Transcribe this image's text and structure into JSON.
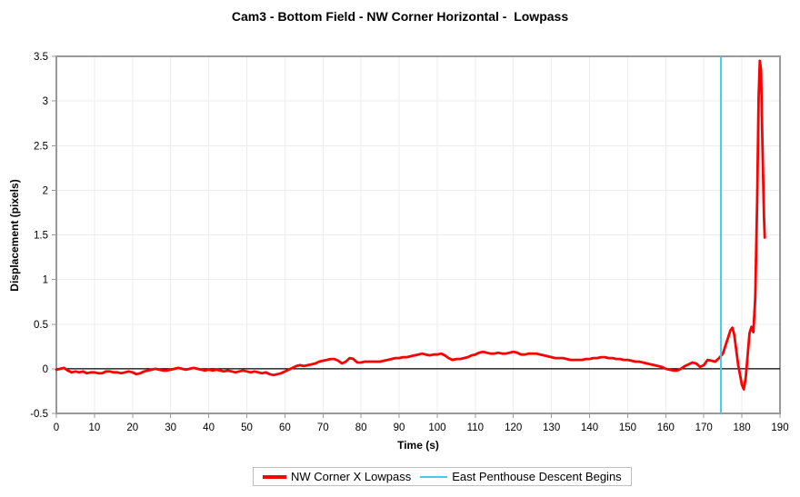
{
  "chart_data": {
    "type": "line",
    "title": "Cam3 - Bottom Field - NW Corner Horizontal -  Lowpass",
    "xlabel": "Time (s)",
    "ylabel": "Displacement (pixels)",
    "xlim": [
      0,
      190
    ],
    "ylim": [
      -0.5,
      3.5
    ],
    "x_ticks": [
      0,
      10,
      20,
      30,
      40,
      50,
      60,
      70,
      80,
      90,
      100,
      110,
      120,
      130,
      140,
      150,
      160,
      170,
      180,
      190
    ],
    "y_ticks": [
      -0.5,
      0,
      0.5,
      1,
      1.5,
      2,
      2.5,
      3,
      3.5
    ],
    "y_tick_labels": [
      "-0.5",
      "0",
      "0.5",
      "1",
      "1.5",
      "2",
      "2.5",
      "3",
      "3.5"
    ],
    "grid": true,
    "legend_position": "bottom-center",
    "colors": {
      "frame": "#999999",
      "grid": "#ededed",
      "zero_line": "#000000",
      "series_red": "#ff0000",
      "event_cyan": "#45c9f1",
      "legend_border": "#bfbfbf"
    },
    "series": [
      {
        "name": "NW Corner X Lowpass",
        "type": "line",
        "color": "#ff0000",
        "width": 2.8,
        "points": [
          [
            0,
            -0.01
          ],
          [
            1,
            0.0
          ],
          [
            2,
            0.01
          ],
          [
            3,
            -0.02
          ],
          [
            4,
            -0.04
          ],
          [
            5,
            -0.03
          ],
          [
            6,
            -0.04
          ],
          [
            7,
            -0.03
          ],
          [
            8,
            -0.05
          ],
          [
            9,
            -0.04
          ],
          [
            10,
            -0.04
          ],
          [
            11,
            -0.05
          ],
          [
            12,
            -0.05
          ],
          [
            13,
            -0.03
          ],
          [
            14,
            -0.03
          ],
          [
            15,
            -0.04
          ],
          [
            16,
            -0.04
          ],
          [
            17,
            -0.05
          ],
          [
            18,
            -0.04
          ],
          [
            19,
            -0.03
          ],
          [
            20,
            -0.04
          ],
          [
            21,
            -0.06
          ],
          [
            22,
            -0.05
          ],
          [
            23,
            -0.03
          ],
          [
            24,
            -0.02
          ],
          [
            25,
            -0.01
          ],
          [
            26,
            0.0
          ],
          [
            27,
            -0.01
          ],
          [
            28,
            -0.02
          ],
          [
            29,
            -0.02
          ],
          [
            30,
            -0.01
          ],
          [
            31,
            0.0
          ],
          [
            32,
            0.01
          ],
          [
            33,
            0.0
          ],
          [
            34,
            -0.01
          ],
          [
            35,
            0.0
          ],
          [
            36,
            0.01
          ],
          [
            37,
            0.0
          ],
          [
            38,
            -0.01
          ],
          [
            39,
            -0.02
          ],
          [
            40,
            -0.01
          ],
          [
            41,
            -0.02
          ],
          [
            42,
            -0.01
          ],
          [
            43,
            -0.02
          ],
          [
            44,
            -0.03
          ],
          [
            45,
            -0.02
          ],
          [
            46,
            -0.03
          ],
          [
            47,
            -0.04
          ],
          [
            48,
            -0.03
          ],
          [
            49,
            -0.02
          ],
          [
            50,
            -0.03
          ],
          [
            51,
            -0.04
          ],
          [
            52,
            -0.03
          ],
          [
            53,
            -0.04
          ],
          [
            54,
            -0.05
          ],
          [
            55,
            -0.04
          ],
          [
            56,
            -0.06
          ],
          [
            57,
            -0.07
          ],
          [
            58,
            -0.06
          ],
          [
            59,
            -0.05
          ],
          [
            60,
            -0.03
          ],
          [
            61,
            -0.01
          ],
          [
            62,
            0.01
          ],
          [
            63,
            0.03
          ],
          [
            64,
            0.04
          ],
          [
            65,
            0.03
          ],
          [
            66,
            0.04
          ],
          [
            67,
            0.05
          ],
          [
            68,
            0.06
          ],
          [
            69,
            0.08
          ],
          [
            70,
            0.09
          ],
          [
            71,
            0.1
          ],
          [
            72,
            0.11
          ],
          [
            73,
            0.11
          ],
          [
            74,
            0.09
          ],
          [
            75,
            0.06
          ],
          [
            76,
            0.08
          ],
          [
            77,
            0.12
          ],
          [
            78,
            0.11
          ],
          [
            79,
            0.07
          ],
          [
            80,
            0.07
          ],
          [
            81,
            0.08
          ],
          [
            82,
            0.08
          ],
          [
            83,
            0.08
          ],
          [
            84,
            0.08
          ],
          [
            85,
            0.08
          ],
          [
            86,
            0.09
          ],
          [
            87,
            0.1
          ],
          [
            88,
            0.11
          ],
          [
            89,
            0.12
          ],
          [
            90,
            0.12
          ],
          [
            91,
            0.13
          ],
          [
            92,
            0.13
          ],
          [
            93,
            0.14
          ],
          [
            94,
            0.15
          ],
          [
            95,
            0.16
          ],
          [
            96,
            0.17
          ],
          [
            97,
            0.16
          ],
          [
            98,
            0.15
          ],
          [
            99,
            0.16
          ],
          [
            100,
            0.16
          ],
          [
            101,
            0.17
          ],
          [
            102,
            0.15
          ],
          [
            103,
            0.12
          ],
          [
            104,
            0.1
          ],
          [
            105,
            0.11
          ],
          [
            106,
            0.11
          ],
          [
            107,
            0.12
          ],
          [
            108,
            0.13
          ],
          [
            109,
            0.15
          ],
          [
            110,
            0.16
          ],
          [
            111,
            0.18
          ],
          [
            112,
            0.19
          ],
          [
            113,
            0.18
          ],
          [
            114,
            0.17
          ],
          [
            115,
            0.17
          ],
          [
            116,
            0.18
          ],
          [
            117,
            0.17
          ],
          [
            118,
            0.17
          ],
          [
            119,
            0.18
          ],
          [
            120,
            0.19
          ],
          [
            121,
            0.18
          ],
          [
            122,
            0.16
          ],
          [
            123,
            0.16
          ],
          [
            124,
            0.17
          ],
          [
            125,
            0.17
          ],
          [
            126,
            0.17
          ],
          [
            127,
            0.16
          ],
          [
            128,
            0.15
          ],
          [
            129,
            0.14
          ],
          [
            130,
            0.13
          ],
          [
            131,
            0.12
          ],
          [
            132,
            0.12
          ],
          [
            133,
            0.12
          ],
          [
            134,
            0.11
          ],
          [
            135,
            0.1
          ],
          [
            136,
            0.1
          ],
          [
            137,
            0.1
          ],
          [
            138,
            0.1
          ],
          [
            139,
            0.11
          ],
          [
            140,
            0.11
          ],
          [
            141,
            0.12
          ],
          [
            142,
            0.12
          ],
          [
            143,
            0.13
          ],
          [
            144,
            0.13
          ],
          [
            145,
            0.12
          ],
          [
            146,
            0.12
          ],
          [
            147,
            0.11
          ],
          [
            148,
            0.11
          ],
          [
            149,
            0.1
          ],
          [
            150,
            0.1
          ],
          [
            151,
            0.09
          ],
          [
            152,
            0.08
          ],
          [
            153,
            0.08
          ],
          [
            154,
            0.07
          ],
          [
            155,
            0.06
          ],
          [
            156,
            0.05
          ],
          [
            157,
            0.04
          ],
          [
            158,
            0.03
          ],
          [
            159,
            0.02
          ],
          [
            160,
            0.0
          ],
          [
            161,
            -0.01
          ],
          [
            162,
            -0.02
          ],
          [
            163,
            -0.02
          ],
          [
            164,
            0.0
          ],
          [
            165,
            0.03
          ],
          [
            166,
            0.05
          ],
          [
            167,
            0.07
          ],
          [
            168,
            0.06
          ],
          [
            169,
            0.02
          ],
          [
            170,
            0.04
          ],
          [
            171,
            0.1
          ],
          [
            172,
            0.09
          ],
          [
            173,
            0.08
          ],
          [
            174,
            0.12
          ],
          [
            175,
            0.17
          ],
          [
            176,
            0.3
          ],
          [
            177,
            0.43
          ],
          [
            177.5,
            0.46
          ],
          [
            178,
            0.38
          ],
          [
            179,
            0.05
          ],
          [
            180,
            -0.18
          ],
          [
            180.5,
            -0.23
          ],
          [
            181,
            -0.1
          ],
          [
            181.5,
            0.15
          ],
          [
            182,
            0.4
          ],
          [
            182.5,
            0.47
          ],
          [
            183,
            0.41
          ],
          [
            183.5,
            0.8
          ],
          [
            184,
            1.9
          ],
          [
            184.4,
            3.05
          ],
          [
            184.7,
            3.45
          ],
          [
            185,
            3.35
          ],
          [
            185.4,
            2.5
          ],
          [
            185.8,
            1.7
          ],
          [
            186,
            1.47
          ]
        ]
      },
      {
        "name": "East Penthouse Descent Begins",
        "type": "vline",
        "color": "#45c9f1",
        "width": 2,
        "x": 174.5
      }
    ]
  },
  "legend": {
    "items": [
      {
        "label": "NW Corner X Lowpass",
        "color": "#ff0000",
        "sample_height": 4,
        "sample_width": 26
      },
      {
        "label": "East Penthouse Descent Begins",
        "color": "#45c9f1",
        "sample_height": 2,
        "sample_width": 30
      }
    ]
  }
}
